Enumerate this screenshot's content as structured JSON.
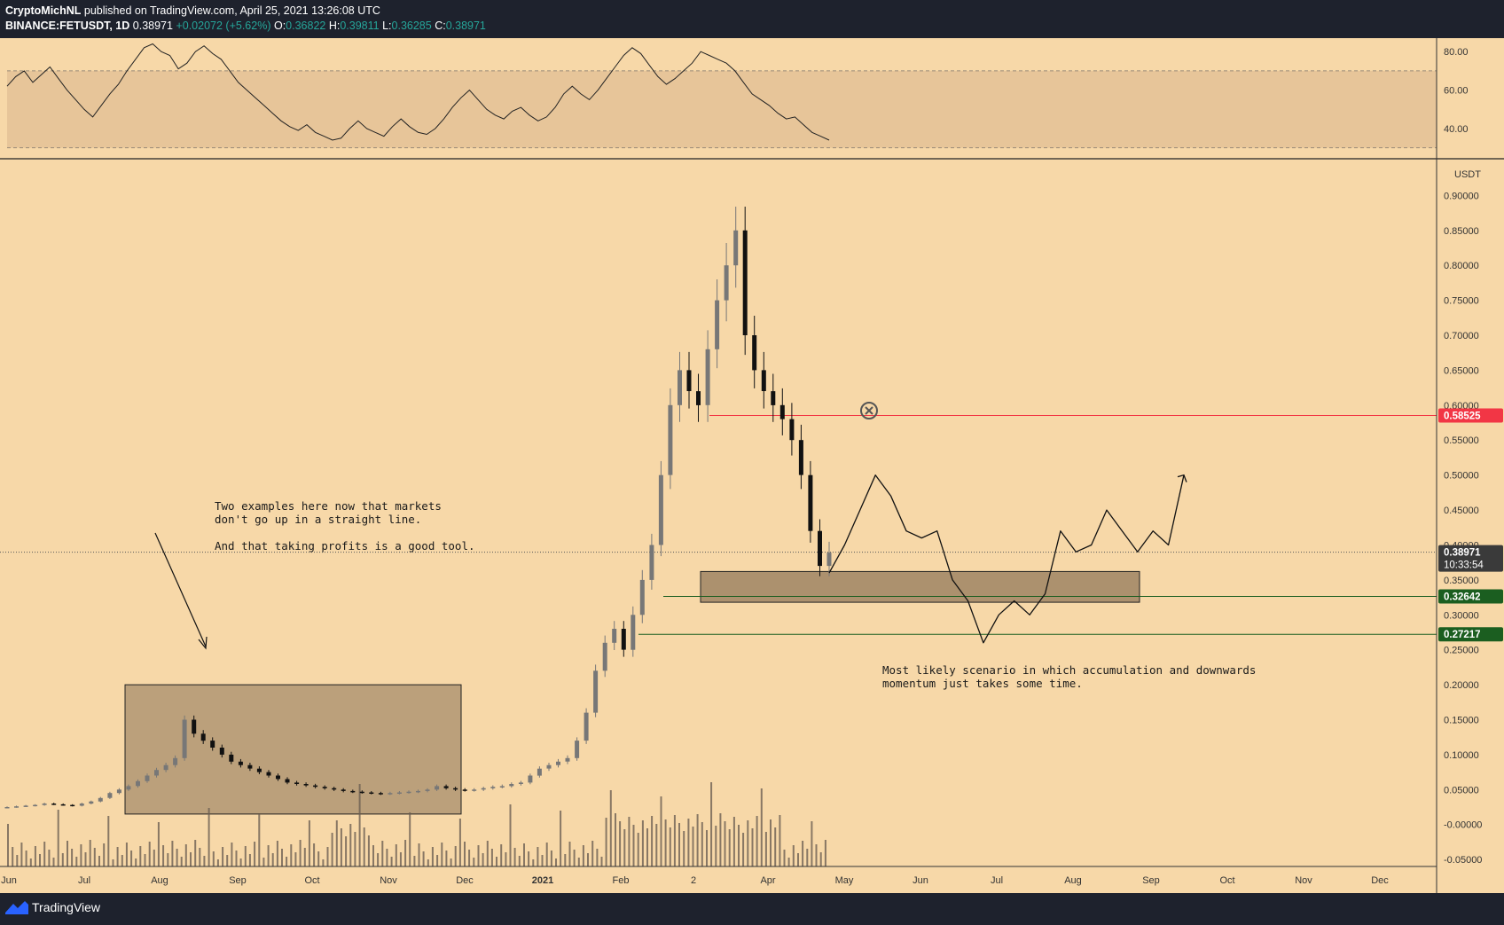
{
  "header": {
    "author": "CryptoMichNL",
    "published": " published on TradingView.com, April 25, 2021 13:26:08 UTC",
    "symbol": "BINANCE:FETUSDT, 1D",
    "last": "0.38971",
    "change": "+0.02072 (+5.62%)",
    "o_label": "O:",
    "o_value": "0.36822",
    "h_label": "H:",
    "h_value": "0.39811",
    "l_label": "L:",
    "l_value": "0.36285",
    "c_label": "C:",
    "c_value": "0.38971"
  },
  "footer": {
    "brand": "TradingView"
  },
  "colors": {
    "background": "#f7d8a8",
    "dark": "#1e222d",
    "red_line": "#f23645",
    "green_line": "#1b5e20",
    "box_fill": "#8b7355",
    "up": "#26a69a"
  },
  "annotations": {
    "left_note": "Two examples here now that markets\ndon't go up in a straight line.\n\nAnd that taking profits is a good tool.",
    "right_note": "Most likely scenario in which accumulation and downwards\nmomentum just takes some time."
  },
  "chart_data": [
    {
      "type": "line",
      "name": "RSI",
      "ylim": [
        28,
        87
      ],
      "yticks": [
        "80.00",
        "60.00",
        "40.00"
      ],
      "band": [
        30,
        70
      ],
      "values": [
        62,
        67,
        70,
        64,
        68,
        72,
        66,
        60,
        55,
        50,
        46,
        52,
        58,
        63,
        70,
        76,
        82,
        84,
        80,
        78,
        71,
        74,
        80,
        83,
        79,
        76,
        70,
        64,
        60,
        56,
        52,
        48,
        44,
        41,
        39,
        42,
        38,
        36,
        34,
        35,
        40,
        44,
        40,
        38,
        36,
        41,
        45,
        41,
        38,
        37,
        40,
        45,
        51,
        56,
        60,
        55,
        50,
        47,
        45,
        49,
        51,
        47,
        44,
        46,
        51,
        58,
        62,
        58,
        55,
        60,
        66,
        72,
        78,
        82,
        79,
        73,
        67,
        63,
        66,
        70,
        74,
        80,
        78,
        76,
        74,
        70,
        64,
        58,
        55,
        52,
        48,
        45,
        46,
        42,
        38,
        36,
        34
      ]
    },
    {
      "type": "candlestick",
      "name": "FETUSDT 1D",
      "currency": "USDT",
      "ylim": [
        -0.06,
        0.95
      ],
      "yticks": [
        "0.90000",
        "0.85000",
        "0.80000",
        "0.75000",
        "0.70000",
        "0.65000",
        "0.60000",
        "0.55000",
        "0.50000",
        "0.45000",
        "0.40000",
        "0.35000",
        "0.30000",
        "0.25000",
        "0.20000",
        "0.15000",
        "0.10000",
        "0.05000",
        "-0.00000",
        "-0.05000"
      ],
      "xticks": [
        "Jun",
        "Jul",
        "Aug",
        "Sep",
        "Oct",
        "Nov",
        "Dec",
        "2021",
        "Feb",
        "2",
        "Apr",
        "May",
        "Jun",
        "Jul",
        "Aug",
        "Sep",
        "Oct",
        "Nov",
        "Dec"
      ],
      "close_series": [
        0.025,
        0.026,
        0.027,
        0.028,
        0.03,
        0.029,
        0.028,
        0.027,
        0.03,
        0.033,
        0.038,
        0.045,
        0.05,
        0.055,
        0.062,
        0.07,
        0.078,
        0.085,
        0.095,
        0.15,
        0.13,
        0.12,
        0.11,
        0.1,
        0.09,
        0.085,
        0.08,
        0.075,
        0.07,
        0.065,
        0.06,
        0.058,
        0.056,
        0.054,
        0.052,
        0.05,
        0.048,
        0.047,
        0.046,
        0.045,
        0.044,
        0.045,
        0.046,
        0.047,
        0.048,
        0.05,
        0.055,
        0.052,
        0.05,
        0.049,
        0.05,
        0.052,
        0.054,
        0.055,
        0.058,
        0.06,
        0.07,
        0.08,
        0.085,
        0.09,
        0.095,
        0.12,
        0.16,
        0.22,
        0.26,
        0.28,
        0.25,
        0.3,
        0.35,
        0.4,
        0.5,
        0.6,
        0.65,
        0.62,
        0.6,
        0.68,
        0.75,
        0.8,
        0.85,
        0.7,
        0.65,
        0.62,
        0.6,
        0.58,
        0.55,
        0.5,
        0.42,
        0.37,
        0.389
      ],
      "last_price": "0.38971",
      "countdown": "10:33:54",
      "price_labels": [
        "0.58525",
        "0.32642",
        "0.27217"
      ],
      "levels": [
        0.58525,
        0.32642,
        0.27217
      ],
      "boxes": [
        {
          "price_low": 0.015,
          "price_high": 0.2
        },
        {
          "price_low": 0.318,
          "price_high": 0.362
        }
      ],
      "projection": [
        0.36,
        0.4,
        0.45,
        0.5,
        0.47,
        0.42,
        0.41,
        0.42,
        0.35,
        0.32,
        0.26,
        0.3,
        0.32,
        0.3,
        0.33,
        0.42,
        0.39,
        0.4,
        0.45,
        0.42,
        0.39,
        0.42,
        0.4,
        0.5
      ]
    }
  ]
}
